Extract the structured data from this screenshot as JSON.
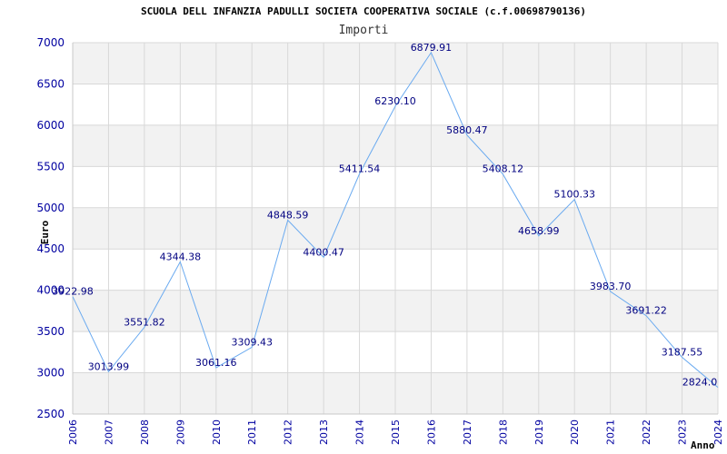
{
  "chart_data": {
    "type": "line",
    "title": "SCUOLA DELL INFANZIA PADULLI SOCIETA COOPERATIVA SOCIALE (c.f.00698790136)",
    "subtitle": "Importi",
    "xlabel": "Anno",
    "ylabel": "Euro",
    "ylim": [
      2500,
      7000
    ],
    "yticks": [
      2500,
      3000,
      3500,
      4000,
      4500,
      5000,
      5500,
      6000,
      6500,
      7000
    ],
    "grid": true,
    "x": [
      "2006",
      "2007",
      "2008",
      "2009",
      "2010",
      "2011",
      "2012",
      "2013",
      "2014",
      "2015",
      "2016",
      "2017",
      "2018",
      "2019",
      "2020",
      "2021",
      "2022",
      "2023",
      "2024"
    ],
    "values": [
      3922.98,
      3013.99,
      3551.82,
      4344.38,
      3061.16,
      3309.43,
      4848.59,
      4400.47,
      5411.54,
      6230.1,
      6879.91,
      5880.47,
      5408.12,
      4658.99,
      5100.33,
      3983.7,
      3691.22,
      3187.55,
      2824.0
    ],
    "data_labels": [
      "3922.98",
      "3013.99",
      "3551.82",
      "4344.38",
      "3061.16",
      "3309.43",
      "4848.59",
      "4400.47",
      "5411.54",
      "6230.10",
      "6879.91",
      "5880.47",
      "5408.12",
      "4658.99",
      "5100.33",
      "3983.70",
      "3691.22",
      "3187.55",
      "2824.0"
    ],
    "colors": {
      "line": "#6aaaf0",
      "band": "#f2f2f2",
      "grid": "#d8d8d8",
      "tick_text": "#0000a0",
      "label_text": "#000080"
    }
  }
}
